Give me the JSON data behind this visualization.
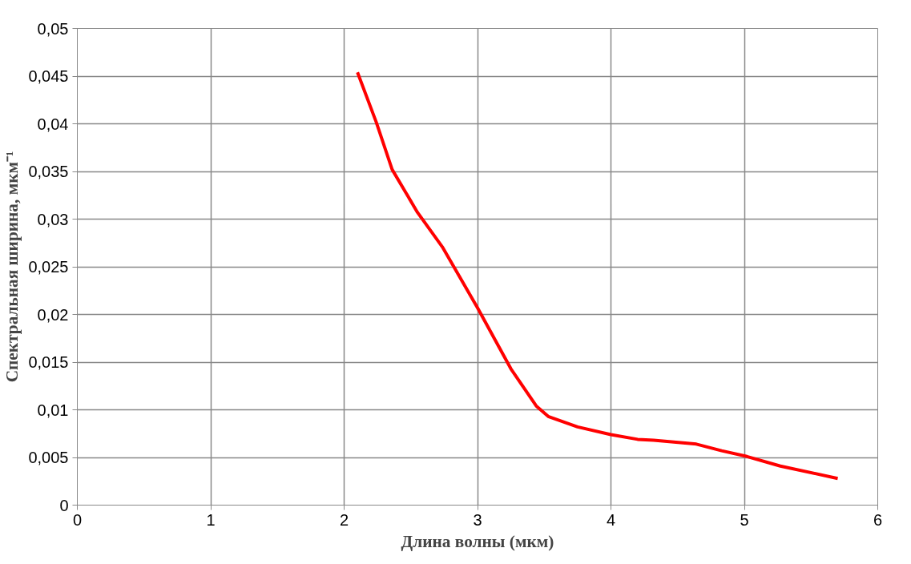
{
  "chart_data": {
    "type": "line",
    "xlabel": "Длина волны (мкм)",
    "ylabel": "Спектральная ширина, мкм⁻¹",
    "x": [
      2.1,
      2.24,
      2.36,
      2.55,
      2.74,
      3.0,
      3.25,
      3.44,
      3.53,
      3.75,
      4.0,
      4.2,
      4.32,
      4.64,
      4.83,
      5.02,
      5.27,
      5.7
    ],
    "series": [
      {
        "color": "#ff0000",
        "values": [
          0.0454,
          0.0402,
          0.0352,
          0.0307,
          0.027,
          0.0207,
          0.0143,
          0.0104,
          0.0093,
          0.0082,
          0.0074,
          0.0069,
          0.0068,
          0.0064,
          0.0057,
          0.0051,
          0.0041,
          0.0028
        ]
      }
    ],
    "xlim": [
      0,
      6
    ],
    "xticks": [
      0,
      1,
      2,
      3,
      4,
      5,
      6
    ],
    "ylim": [
      0,
      0.05
    ],
    "yticks": [
      0,
      {
        "value": 0.005,
        "label": "0,005"
      },
      {
        "value": 0.01,
        "label": "0,01"
      },
      {
        "value": 0.015,
        "label": "0,015"
      },
      {
        "value": 0.02,
        "label": "0,02"
      },
      {
        "value": 0.025,
        "label": "0,025"
      },
      {
        "value": 0.03,
        "label": "0,03"
      },
      {
        "value": 0.035,
        "label": "0,035"
      },
      {
        "value": 0.04,
        "label": "0,04"
      },
      {
        "value": 0.045,
        "label": "0,045"
      },
      {
        "value": 0.05,
        "label": "0,05"
      }
    ],
    "grid": true,
    "marker": "none",
    "line_style": "solid"
  }
}
